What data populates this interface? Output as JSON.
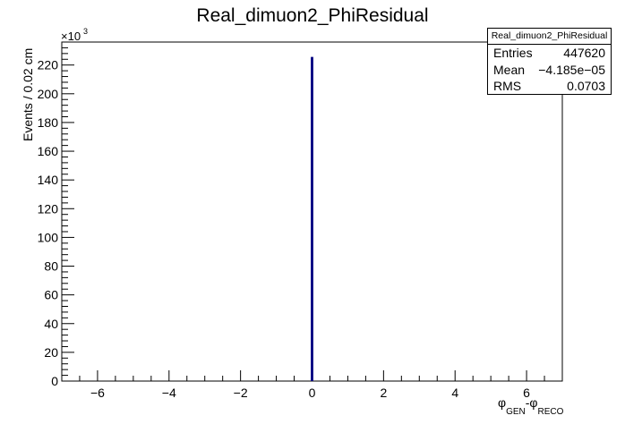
{
  "chart_data": {
    "type": "bar",
    "title": "Real_dimuon2_PhiResidual",
    "xlabel": "φ_GEN-φ_RECO",
    "ylabel": "Events / 0.02 cm",
    "y_multiplier_label": "×10^3",
    "xlim": [
      -7,
      7
    ],
    "ylim": [
      0,
      236
    ],
    "y_units": "thousands of events",
    "bin_width": 0.02,
    "x_ticks": [
      -6,
      -4,
      -2,
      0,
      2,
      4,
      6
    ],
    "x_tick_labels": [
      "−6",
      "−4",
      "−2",
      "0",
      "2",
      "4",
      "6"
    ],
    "y_ticks": [
      0,
      20,
      40,
      60,
      80,
      100,
      120,
      140,
      160,
      180,
      200,
      220
    ],
    "y_tick_labels": [
      "0",
      "20",
      "40",
      "60",
      "80",
      "100",
      "120",
      "140",
      "160",
      "180",
      "200",
      "220"
    ],
    "bins": [
      {
        "x": 0.0,
        "value": 225
      }
    ],
    "line_color": "#00007f",
    "grid": false,
    "legend": "none",
    "stats": {
      "title": "Real_dimuon2_PhiResidual",
      "rows": [
        {
          "label": "Entries",
          "value": "447620"
        },
        {
          "label": "Mean",
          "value": "−4.185e−05"
        },
        {
          "label": "RMS",
          "value": "0.0703"
        }
      ],
      "placement": "top-right"
    }
  }
}
